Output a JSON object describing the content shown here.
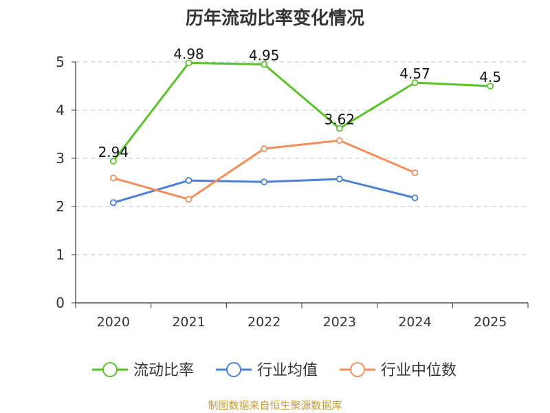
{
  "chart_data": {
    "type": "line",
    "title": "历年流动比率变化情况",
    "categories": [
      "2020",
      "2021",
      "2022",
      "2023",
      "2024",
      "2025"
    ],
    "ylim": [
      0,
      5
    ],
    "yticks": [
      0,
      1,
      2,
      3,
      4,
      5
    ],
    "grid": true,
    "legend_position": "bottom",
    "series": [
      {
        "name": "流动比率",
        "color": "#5bc128",
        "values": [
          2.94,
          4.98,
          4.95,
          3.62,
          4.57,
          4.5
        ],
        "show_labels": true
      },
      {
        "name": "行业均值",
        "color": "#4c7fd6",
        "values": [
          2.08,
          2.54,
          2.51,
          2.57,
          2.18,
          null
        ],
        "show_labels": false
      },
      {
        "name": "行业中位数",
        "color": "#f58d5a",
        "values": [
          2.59,
          2.15,
          3.2,
          3.37,
          2.7,
          null
        ],
        "show_labels": false
      }
    ]
  },
  "source_note": "制图数据来自恒生聚源数据库"
}
